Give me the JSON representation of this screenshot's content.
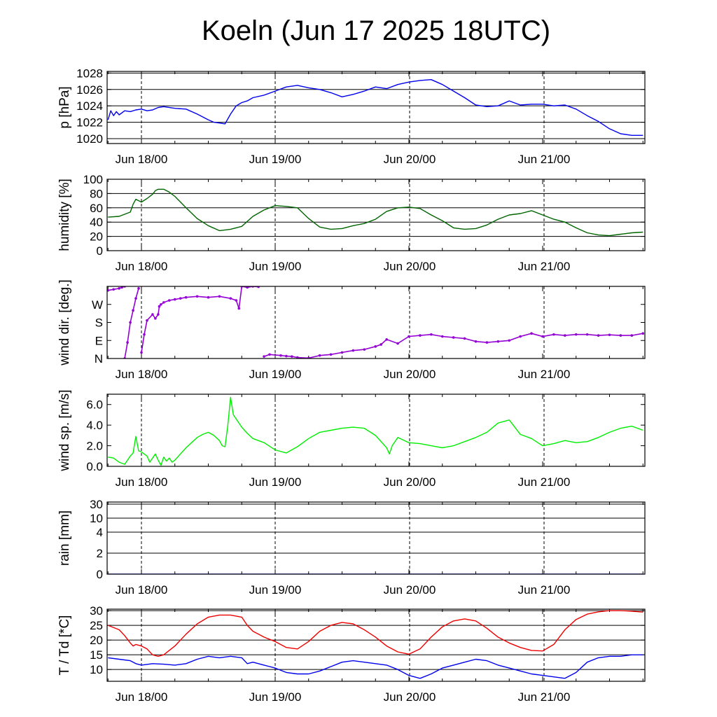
{
  "title": "Koeln (Jun 17 2025 18UTC)",
  "colors": {
    "pressure": "#0000ee",
    "humidity": "#006400",
    "wind_dir": "#9400d3",
    "wind_speed": "#00ee00",
    "rain": "#0000ee",
    "temperature": "#ee0000",
    "dewpoint": "#0000ee"
  },
  "chart_data": [
    {
      "type": "line",
      "ylabel": "p [hPa]",
      "ylim": [
        1019.4,
        1028.2
      ],
      "yticks": [
        "1020",
        "1022",
        "1024",
        "1026",
        "1028"
      ],
      "ytick_values": [
        1020,
        1022,
        1024,
        1026,
        1028
      ],
      "x_ticks": [
        "Jun 18/00",
        "Jun 19/00",
        "Jun 20/00",
        "Jun 21/00"
      ],
      "x_range_hours": [
        -6,
        90
      ],
      "grid": "y-major",
      "series": [
        {
          "color_key": "pressure",
          "x": [
            -6,
            -5.5,
            -5,
            -4.5,
            -4,
            -3,
            -2,
            -1,
            0,
            1,
            2,
            3,
            4,
            6,
            8,
            10,
            12,
            13,
            14,
            15,
            16,
            17,
            18,
            19,
            20,
            22,
            24,
            26,
            28,
            30,
            32,
            34,
            36,
            38,
            40,
            42,
            44,
            46,
            48,
            50,
            52,
            54,
            56,
            58,
            60,
            62,
            64,
            66,
            68,
            70,
            72,
            74,
            76,
            78,
            80,
            82,
            84,
            86,
            88,
            90
          ],
          "y": [
            1022.3,
            1023.4,
            1022.8,
            1023.3,
            1022.9,
            1023.4,
            1023.3,
            1023.5,
            1023.6,
            1023.4,
            1023.5,
            1023.8,
            1023.9,
            1023.7,
            1023.6,
            1023.0,
            1022.3,
            1022.0,
            1021.9,
            1021.8,
            1023.0,
            1024.0,
            1024.4,
            1024.6,
            1025.0,
            1025.3,
            1025.8,
            1026.3,
            1026.5,
            1026.2,
            1026.0,
            1025.6,
            1025.1,
            1025.4,
            1025.8,
            1026.3,
            1026.1,
            1026.6,
            1026.9,
            1027.1,
            1027.2,
            1026.6,
            1025.8,
            1025.0,
            1024.1,
            1023.9,
            1024.0,
            1024.6,
            1024.1,
            1024.2,
            1024.2,
            1024.0,
            1024.1,
            1023.6,
            1022.8,
            1022.1,
            1021.2,
            1020.6,
            1020.4,
            1020.4
          ]
        }
      ]
    },
    {
      "type": "line",
      "ylabel": "humidity [%]",
      "ylim": [
        0,
        100
      ],
      "yticks": [
        "0",
        "20",
        "40",
        "60",
        "80",
        "100"
      ],
      "ytick_values": [
        0,
        20,
        40,
        60,
        80,
        100
      ],
      "x_ticks": [
        "Jun 18/00",
        "Jun 19/00",
        "Jun 20/00",
        "Jun 21/00"
      ],
      "x_range_hours": [
        -6,
        90
      ],
      "grid": "y-major",
      "series": [
        {
          "color_key": "humidity",
          "x": [
            -6,
            -4,
            -2,
            -1.5,
            -1,
            0,
            1,
            2,
            2.5,
            3,
            4,
            5,
            6,
            8,
            10,
            12,
            14,
            16,
            18,
            20,
            22,
            24,
            26,
            28,
            30,
            32,
            34,
            36,
            38,
            40,
            42,
            44,
            46,
            48,
            50,
            52,
            54,
            56,
            58,
            60,
            62,
            64,
            66,
            68,
            70,
            72,
            74,
            76,
            78,
            80,
            82,
            84,
            86,
            88,
            90
          ],
          "y": [
            47,
            48,
            54,
            65,
            72,
            68,
            73,
            79,
            84,
            86,
            86,
            82,
            76,
            60,
            45,
            35,
            28,
            30,
            34,
            48,
            57,
            63,
            62,
            60,
            45,
            33,
            30,
            31,
            35,
            38,
            44,
            55,
            60,
            61,
            59,
            50,
            42,
            32,
            30,
            31,
            36,
            44,
            50,
            52,
            56,
            50,
            44,
            40,
            32,
            25,
            22,
            21,
            23,
            25,
            26
          ]
        }
      ]
    },
    {
      "type": "scatter",
      "ylabel": "wind dir. [deg.]",
      "ylim": [
        0,
        360
      ],
      "yticks": [
        "N",
        "E",
        "S",
        "W"
      ],
      "ytick_values": [
        0,
        90,
        180,
        270
      ],
      "x_ticks": [
        "Jun 18/00",
        "Jun 19/00",
        "Jun 20/00",
        "Jun 21/00"
      ],
      "x_range_hours": [
        -6,
        90
      ],
      "grid": "none",
      "series": [
        {
          "color_key": "wind_dir",
          "x": [
            -6,
            -5,
            -4,
            -3.5,
            -3,
            -3,
            -2.5,
            -2,
            -1.5,
            -1,
            -0.5,
            0,
            0.5,
            1,
            2,
            2.5,
            3,
            3.2,
            3.5,
            4,
            5,
            6,
            7,
            8,
            10,
            12,
            14,
            16,
            17,
            17.5,
            18,
            19,
            20,
            21,
            22,
            23,
            25,
            26,
            27,
            28,
            30,
            32,
            34,
            36,
            38,
            40,
            42,
            43,
            44,
            46,
            48,
            50,
            52,
            54,
            56,
            58,
            60,
            62,
            64,
            66,
            68,
            70,
            72,
            74,
            76,
            78,
            80,
            82,
            84,
            86,
            88,
            90
          ],
          "y": [
            340,
            345,
            350,
            355,
            360,
            0,
            80,
            180,
            240,
            300,
            350,
            30,
            120,
            190,
            220,
            200,
            220,
            260,
            270,
            280,
            290,
            295,
            300,
            305,
            310,
            305,
            310,
            300,
            290,
            250,
            360,
            355,
            360,
            358,
            10,
            20,
            15,
            12,
            10,
            5,
            2,
            15,
            20,
            30,
            40,
            45,
            60,
            70,
            95,
            75,
            110,
            115,
            120,
            110,
            105,
            100,
            85,
            80,
            85,
            90,
            110,
            125,
            110,
            120,
            115,
            120,
            120,
            115,
            118,
            115,
            115,
            125
          ]
        }
      ]
    },
    {
      "type": "line",
      "ylabel": "wind sp. [m/s]",
      "ylim": [
        0,
        7
      ],
      "yticks": [
        "0.0",
        "2.0",
        "4.0",
        "6.0"
      ],
      "ytick_values": [
        0,
        2,
        4,
        6
      ],
      "x_ticks": [
        "Jun 18/00",
        "Jun 19/00",
        "Jun 20/00",
        "Jun 21/00"
      ],
      "x_range_hours": [
        -6,
        90
      ],
      "grid": "none",
      "series": [
        {
          "color_key": "wind_speed",
          "x": [
            -6,
            -5,
            -4.5,
            -4,
            -3,
            -2.5,
            -2,
            -1.5,
            -1,
            -0.5,
            0,
            0.5,
            1,
            1.5,
            2,
            2.5,
            3,
            3.5,
            4,
            4.5,
            5,
            5.5,
            6,
            7,
            8,
            9,
            10,
            11,
            12,
            13,
            14,
            14.5,
            15,
            15.5,
            16,
            16.5,
            17,
            18,
            19,
            20,
            22,
            24,
            26,
            28,
            30,
            32,
            34,
            36,
            38,
            40,
            42,
            44,
            44.5,
            45,
            46,
            48,
            50,
            52,
            54,
            56,
            58,
            60,
            62,
            64,
            66,
            68,
            70,
            72,
            74,
            76,
            78,
            80,
            82,
            84,
            86,
            88,
            90
          ],
          "y": [
            0.9,
            0.8,
            0.6,
            0.4,
            0.2,
            0.6,
            1.0,
            1.3,
            2.9,
            1.5,
            1.4,
            1.2,
            1.0,
            0.4,
            0.8,
            1.2,
            0.6,
            0.1,
            0.9,
            0.5,
            0.8,
            0.4,
            0.6,
            1.2,
            1.8,
            2.3,
            2.8,
            3.1,
            3.3,
            3.0,
            2.5,
            2.0,
            1.9,
            4.0,
            6.7,
            5.0,
            4.6,
            3.8,
            3.2,
            2.7,
            2.3,
            1.6,
            1.3,
            1.9,
            2.7,
            3.3,
            3.5,
            3.7,
            3.8,
            3.7,
            3.0,
            1.8,
            1.2,
            2.0,
            2.8,
            2.3,
            2.2,
            2.0,
            1.8,
            2.0,
            2.4,
            2.8,
            3.3,
            4.2,
            4.5,
            3.1,
            2.7,
            2.0,
            2.2,
            2.5,
            2.3,
            2.4,
            2.8,
            3.3,
            3.7,
            3.9,
            3.5
          ]
        }
      ]
    },
    {
      "type": "line",
      "ylabel": "rain [mm]",
      "ylim": [
        0,
        30
      ],
      "yticks": [
        "0",
        "2",
        "4",
        "10",
        "30"
      ],
      "ytick_values": [
        0,
        2,
        4,
        10,
        30
      ],
      "x_ticks": [
        "Jun 18/00",
        "Jun 19/00",
        "Jun 20/00",
        "Jun 21/00"
      ],
      "x_range_hours": [
        -6,
        90
      ],
      "grid": "y-major",
      "series": [
        {
          "color_key": "rain",
          "x": [
            -6,
            90
          ],
          "y": [
            0,
            0
          ]
        }
      ]
    },
    {
      "type": "line",
      "ylabel": "T / Td [*C]",
      "ylim": [
        6,
        30.5
      ],
      "yticks": [
        "10",
        "15",
        "20",
        "25",
        "30"
      ],
      "ytick_values": [
        10,
        15,
        20,
        25,
        30
      ],
      "x_ticks": [
        "Jun 18/00",
        "Jun 19/00",
        "Jun 20/00",
        "Jun 21/00"
      ],
      "x_range_hours": [
        -6,
        90
      ],
      "grid": "y-major",
      "series": [
        {
          "color_key": "temperature",
          "x": [
            -6,
            -4,
            -3,
            -2,
            -1.5,
            -1,
            0,
            1,
            2,
            3,
            4,
            6,
            8,
            10,
            12,
            14,
            16,
            18,
            19,
            20,
            22,
            24,
            26,
            28,
            30,
            32,
            34,
            36,
            38,
            40,
            42,
            44,
            46,
            48,
            50,
            52,
            54,
            56,
            58,
            60,
            62,
            64,
            66,
            68,
            70,
            72,
            74,
            76,
            78,
            80,
            82,
            84,
            86,
            88,
            90
          ],
          "y": [
            25.0,
            23.5,
            21.5,
            19.0,
            18.0,
            18.5,
            18.0,
            17.0,
            15.0,
            14.5,
            15.0,
            18.0,
            22.0,
            25.5,
            27.8,
            28.5,
            28.5,
            27.8,
            25.0,
            23.0,
            21.0,
            19.5,
            17.5,
            17.0,
            19.5,
            23.0,
            25.0,
            26.0,
            25.5,
            23.5,
            21.0,
            18.0,
            16.0,
            15.2,
            17.0,
            21.0,
            24.5,
            26.5,
            27.2,
            26.5,
            24.0,
            21.0,
            19.0,
            17.5,
            16.5,
            16.3,
            18.5,
            23.5,
            27.0,
            28.8,
            29.6,
            30.0,
            30.0,
            29.8,
            29.5
          ]
        },
        {
          "color_key": "dewpoint",
          "x": [
            -6,
            -4,
            -2,
            -1,
            0,
            2,
            4,
            6,
            8,
            10,
            12,
            14,
            16,
            18,
            19,
            20,
            22,
            24,
            26,
            28,
            30,
            32,
            34,
            36,
            38,
            40,
            42,
            44,
            46,
            48,
            50,
            52,
            54,
            56,
            58,
            60,
            62,
            64,
            66,
            68,
            70,
            72,
            74,
            76,
            78,
            80,
            82,
            84,
            86,
            88,
            90
          ],
          "y": [
            14.0,
            13.5,
            13.0,
            12.0,
            11.5,
            12.0,
            11.8,
            11.5,
            12.0,
            13.5,
            14.5,
            14.0,
            14.5,
            14.0,
            12.0,
            12.5,
            11.5,
            10.5,
            9.0,
            8.5,
            8.5,
            9.5,
            11.0,
            12.5,
            13.0,
            12.5,
            12.0,
            11.5,
            10.0,
            8.0,
            7.0,
            8.5,
            10.5,
            11.5,
            12.5,
            13.5,
            13.0,
            11.5,
            10.5,
            9.5,
            8.5,
            8.0,
            7.5,
            7.0,
            9.0,
            12.5,
            14.0,
            14.5,
            14.5,
            15.0,
            15.0
          ]
        }
      ]
    }
  ]
}
